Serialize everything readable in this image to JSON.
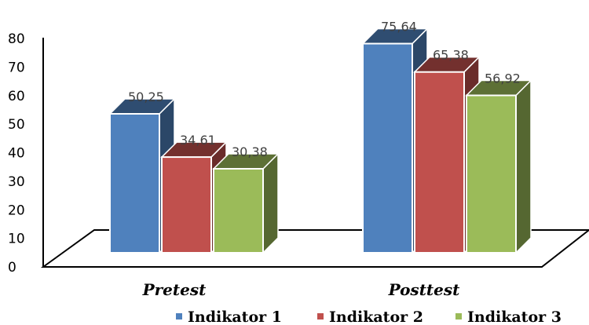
{
  "chart_data": {
    "type": "bar",
    "style": "3d-clustered-column",
    "categories": [
      "Pretest",
      "Posttest"
    ],
    "series": [
      {
        "name": "Indikator 1",
        "values": [
          50.25,
          75.64
        ],
        "labels": [
          "50,25",
          "75,64"
        ],
        "color": "#4F81BD"
      },
      {
        "name": "Indikator 2",
        "values": [
          34.61,
          65.38
        ],
        "labels": [
          "34,61",
          "65,38"
        ],
        "color": "#C0504D"
      },
      {
        "name": "Indikator 3",
        "values": [
          30.38,
          56.92
        ],
        "labels": [
          "30,38",
          "56,92"
        ],
        "color": "#9BBB59"
      }
    ],
    "yticks": [
      "0",
      "10",
      "20",
      "30",
      "40",
      "50",
      "60",
      "70",
      "80"
    ],
    "ylim": [
      0,
      80
    ],
    "legend_position": "bottom",
    "grid": false
  }
}
